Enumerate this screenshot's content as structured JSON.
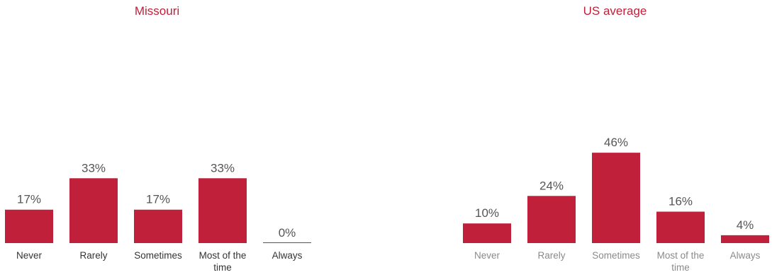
{
  "chart_data": [
    {
      "type": "bar",
      "title": "Missouri",
      "categories": [
        "Never",
        "Rarely",
        "Sometimes",
        "Most of the time",
        "Always"
      ],
      "values": [
        17,
        33,
        17,
        33,
        0
      ],
      "value_labels": [
        "17%",
        "33%",
        "17%",
        "33%",
        "0%"
      ],
      "ylim": [
        0,
        100
      ],
      "grid": false,
      "bar_color": "#c0203a",
      "title_color": "#c0203a"
    },
    {
      "type": "bar",
      "title": "US average",
      "categories": [
        "Never",
        "Rarely",
        "Sometimes",
        "Most of the time",
        "Always"
      ],
      "values": [
        10,
        24,
        46,
        16,
        4
      ],
      "value_labels": [
        "10%",
        "24%",
        "46%",
        "16%",
        "4%"
      ],
      "ylim": [
        0,
        100
      ],
      "grid": false,
      "bar_color": "#c0203a",
      "title_color": "#c0203a"
    }
  ]
}
